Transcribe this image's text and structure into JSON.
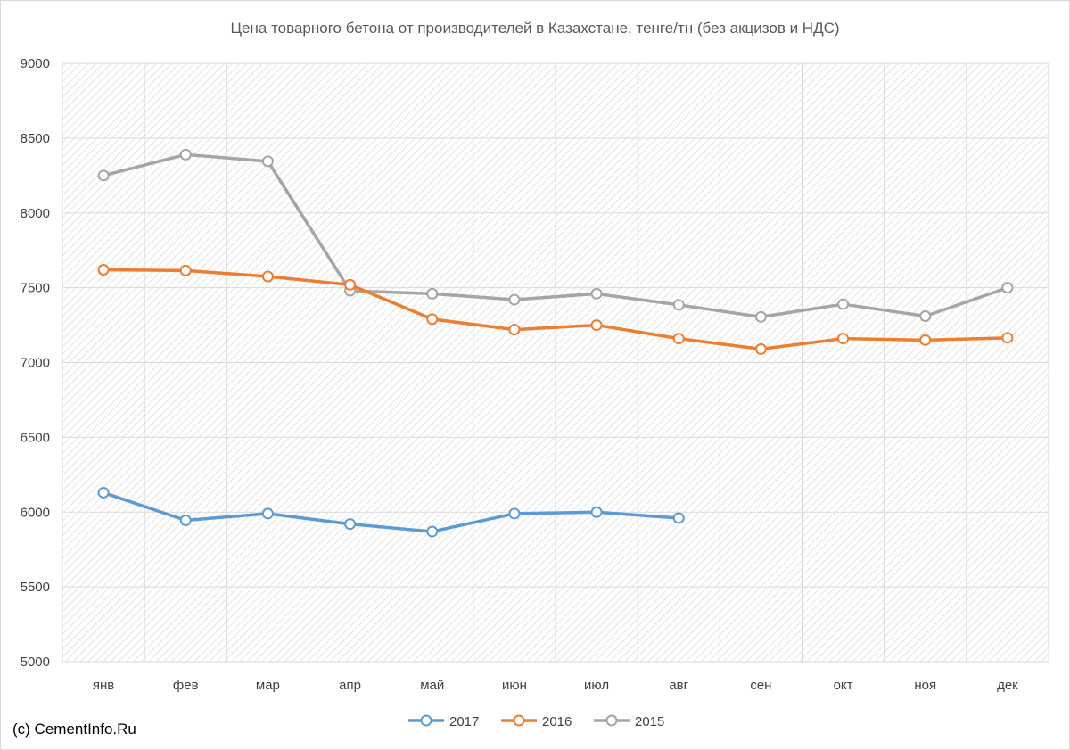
{
  "chart_data": {
    "type": "line",
    "title": "Цена товарного бетона от производителей в Казахстане, тенге/тн (без акцизов и НДС)",
    "xlabel": "",
    "ylabel": "",
    "categories": [
      "янв",
      "фев",
      "мар",
      "апр",
      "май",
      "июн",
      "июл",
      "авг",
      "сен",
      "окт",
      "ноя",
      "дек"
    ],
    "ylim": [
      5000,
      9000
    ],
    "yticks": [
      5000,
      5500,
      6000,
      6500,
      7000,
      7500,
      8000,
      8500,
      9000
    ],
    "grid": true,
    "legend_position": "bottom",
    "series": [
      {
        "name": "2017",
        "color": "#5B9BD5",
        "values": [
          6130,
          5945,
          5990,
          5920,
          5870,
          5990,
          6000,
          5960,
          null,
          null,
          null,
          null
        ]
      },
      {
        "name": "2016",
        "color": "#ED7D31",
        "values": [
          7620,
          7615,
          7575,
          7520,
          7290,
          7220,
          7250,
          7160,
          7090,
          7160,
          7150,
          7165
        ]
      },
      {
        "name": "2015",
        "color": "#A5A5A5",
        "values": [
          8250,
          8390,
          8345,
          7480,
          7460,
          7420,
          7460,
          7385,
          7305,
          7390,
          7310,
          7500
        ]
      }
    ]
  },
  "footer": {
    "credit": "(c) CementInfo.Ru"
  }
}
